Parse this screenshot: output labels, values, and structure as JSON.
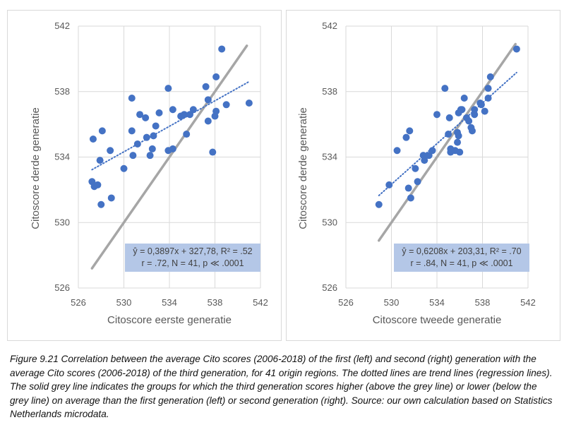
{
  "chart_data": [
    {
      "type": "scatter",
      "id": "left",
      "xlabel": "Citoscore eerste generatie",
      "ylabel": "Citoscore derde generatie",
      "xlim": [
        526,
        542
      ],
      "ylim": [
        526,
        542
      ],
      "xticks": [
        "526",
        "530",
        "534",
        "538",
        "542"
      ],
      "yticks": [
        "542",
        "538",
        "534",
        "530",
        "526"
      ],
      "points": [
        [
          527.3,
          535.1
        ],
        [
          528.1,
          535.6
        ],
        [
          528.8,
          534.4
        ],
        [
          527.9,
          533.8
        ],
        [
          527.2,
          532.5
        ],
        [
          527.4,
          532.2
        ],
        [
          527.7,
          532.3
        ],
        [
          528.9,
          531.5
        ],
        [
          528.0,
          531.1
        ],
        [
          530.0,
          533.3
        ],
        [
          530.8,
          534.1
        ],
        [
          530.7,
          535.6
        ],
        [
          531.2,
          534.8
        ],
        [
          531.4,
          536.6
        ],
        [
          531.9,
          536.4
        ],
        [
          532.0,
          535.2
        ],
        [
          532.3,
          534.1
        ],
        [
          532.5,
          534.5
        ],
        [
          532.6,
          535.3
        ],
        [
          532.8,
          535.9
        ],
        [
          533.1,
          536.7
        ],
        [
          530.7,
          537.6
        ],
        [
          533.9,
          538.2
        ],
        [
          533.9,
          534.4
        ],
        [
          534.3,
          534.5
        ],
        [
          534.3,
          536.9
        ],
        [
          535.0,
          536.5
        ],
        [
          535.3,
          536.6
        ],
        [
          535.5,
          535.4
        ],
        [
          535.8,
          536.6
        ],
        [
          536.1,
          536.9
        ],
        [
          537.2,
          538.3
        ],
        [
          537.4,
          537.5
        ],
        [
          537.8,
          534.3
        ],
        [
          538.1,
          536.8
        ],
        [
          538.1,
          538.9
        ],
        [
          538.6,
          540.6
        ],
        [
          539.0,
          537.2
        ],
        [
          541.0,
          537.3
        ],
        [
          537.4,
          536.2
        ],
        [
          538.0,
          536.5
        ]
      ],
      "trend": {
        "slope": 0.3897,
        "intercept": 327.78,
        "x_from": 527.2,
        "x_to": 541.0
      },
      "reference": {
        "x_from": 527.2,
        "x_to": 540.8
      },
      "equation_line1": "ŷ = 0,3897x + 327,78, R² = .52",
      "equation_line2": "r = .72, N = 41, p ≪ .0001"
    },
    {
      "type": "scatter",
      "id": "right",
      "xlabel": "Citoscore tweede generatie",
      "ylabel": "Citoscore derde generatie",
      "xlim": [
        526,
        542
      ],
      "ylim": [
        526,
        542
      ],
      "xticks": [
        "526",
        "530",
        "534",
        "538",
        "542"
      ],
      "yticks": [
        "542",
        "538",
        "534",
        "530",
        "526"
      ],
      "points": [
        [
          528.9,
          531.1
        ],
        [
          529.8,
          532.3
        ],
        [
          530.5,
          534.4
        ],
        [
          531.3,
          535.2
        ],
        [
          531.6,
          535.6
        ],
        [
          531.5,
          532.1
        ],
        [
          531.7,
          531.5
        ],
        [
          532.1,
          533.3
        ],
        [
          532.3,
          532.5
        ],
        [
          532.8,
          534.1
        ],
        [
          532.9,
          533.8
        ],
        [
          533.3,
          534.1
        ],
        [
          533.6,
          534.4
        ],
        [
          534.0,
          536.6
        ],
        [
          534.7,
          538.2
        ],
        [
          535.1,
          536.4
        ],
        [
          535.0,
          535.4
        ],
        [
          535.2,
          534.5
        ],
        [
          535.2,
          534.3
        ],
        [
          535.6,
          534.4
        ],
        [
          535.8,
          534.9
        ],
        [
          535.8,
          535.5
        ],
        [
          535.9,
          535.3
        ],
        [
          536.0,
          534.3
        ],
        [
          535.9,
          536.7
        ],
        [
          536.1,
          536.9
        ],
        [
          536.2,
          536.9
        ],
        [
          536.4,
          537.6
        ],
        [
          536.6,
          536.4
        ],
        [
          536.8,
          536.2
        ],
        [
          537.0,
          535.8
        ],
        [
          537.1,
          535.6
        ],
        [
          537.3,
          536.9
        ],
        [
          537.3,
          536.6
        ],
        [
          537.9,
          537.2
        ],
        [
          537.8,
          537.3
        ],
        [
          538.2,
          536.8
        ],
        [
          538.5,
          537.6
        ],
        [
          538.5,
          538.2
        ],
        [
          538.7,
          538.9
        ],
        [
          541.0,
          540.6
        ]
      ],
      "trend": {
        "slope": 0.6208,
        "intercept": 203.31,
        "x_from": 528.9,
        "x_to": 541.0
      },
      "reference": {
        "x_from": 528.9,
        "x_to": 540.9
      },
      "equation_line1": "ŷ = 0,6208x + 203,31, R² = .70",
      "equation_line2": "r = .84, N = 41, p ≪ .0001"
    }
  ],
  "colors": {
    "point": "#4472c4",
    "trend": "#4472c4",
    "reference": "#a6a6a6",
    "grid": "#d9d9d9"
  },
  "caption": "Figure 9.21 Correlation between the average Cito scores (2006-2018) of the first (left) and second (right) generation with the average Cito scores (2006-2018) of the third generation, for 41 origin regions. The dotted lines are trend lines (regression lines). The solid grey line indicates the groups for which the third generation scores higher (above the grey line) or lower (below the grey line) on average than the first generation (left) or second generation (right). Source: our own calculation based on Statistics Netherlands microdata."
}
